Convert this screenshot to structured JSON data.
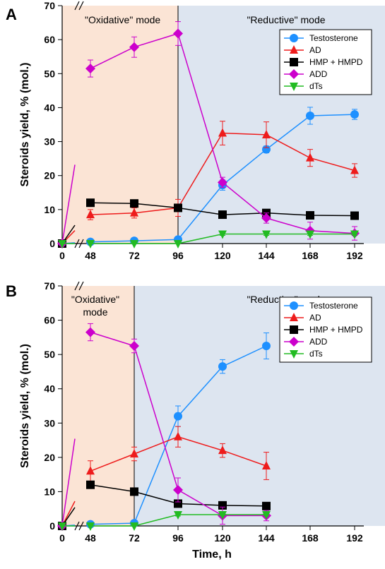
{
  "chart_data": [
    {
      "panel_label": "A",
      "type": "line",
      "ylabel": "Steroids yield, % (mol.)",
      "xlabel": "",
      "ylim": [
        0,
        70
      ],
      "yticks": [
        0,
        10,
        20,
        30,
        40,
        50,
        60,
        70
      ],
      "xticks": [
        0,
        48,
        72,
        96,
        120,
        144,
        168,
        192
      ],
      "axis_break": "between 0 and 48",
      "mode_labels": {
        "oxidative": "\"Oxidative\" mode",
        "reductive": "\"Reductive\" mode"
      },
      "mode_switch_at": 96,
      "legend_position": "top-right",
      "series": [
        {
          "name": "Testosterone",
          "color": "#1e90ff",
          "marker": "circle",
          "x": [
            0,
            48,
            72,
            96,
            120,
            144,
            168,
            192
          ],
          "y": [
            0,
            0.5,
            0.8,
            1.2,
            17.2,
            27.7,
            37.6,
            38
          ],
          "err": [
            0,
            0.5,
            0.5,
            0.5,
            1.5,
            1.0,
            2.5,
            1.5
          ]
        },
        {
          "name": "AD",
          "color": "#ee1c1c",
          "marker": "triangle",
          "x": [
            0,
            48,
            72,
            96,
            120,
            144,
            168,
            192
          ],
          "y": [
            0,
            8.5,
            9,
            10.5,
            32.5,
            32,
            25.2,
            21.5
          ],
          "err": [
            0,
            1.5,
            1.5,
            2.5,
            3.5,
            3.8,
            2.5,
            2.0
          ]
        },
        {
          "name": "HMP + HMPD",
          "color": "#000000",
          "marker": "square",
          "x": [
            0,
            48,
            72,
            96,
            120,
            144,
            168,
            192
          ],
          "y": [
            0,
            12,
            11.8,
            10.5,
            8.5,
            9,
            8.3,
            8.2
          ],
          "err": [
            0,
            0.8,
            0.8,
            0.8,
            0.5,
            0.5,
            0.5,
            0.5
          ]
        },
        {
          "name": "ADD",
          "color": "#cc00cc",
          "marker": "diamond",
          "x": [
            0,
            48,
            72,
            96,
            120,
            144,
            168,
            192
          ],
          "y": [
            0,
            51.5,
            57.8,
            61.8,
            18,
            7.5,
            3.8,
            3
          ],
          "err": [
            0,
            2.5,
            3.0,
            3.5,
            1.5,
            1.5,
            2.5,
            2.0
          ]
        },
        {
          "name": "dTs",
          "color": "#22bb22",
          "marker": "triangle-down",
          "x": [
            0,
            48,
            72,
            96,
            120,
            144,
            168,
            192
          ],
          "y": [
            0,
            0,
            0,
            0,
            2.8,
            2.8,
            2.8,
            2.8
          ],
          "err": [
            0,
            0,
            0,
            0,
            0.4,
            0.4,
            0.4,
            0.4
          ]
        }
      ]
    },
    {
      "panel_label": "B",
      "type": "line",
      "ylabel": "Steroids yield, % (mol.)",
      "xlabel": "Time, h",
      "ylim": [
        0,
        70
      ],
      "yticks": [
        0,
        10,
        20,
        30,
        40,
        50,
        60,
        70
      ],
      "xticks": [
        0,
        48,
        72,
        96,
        120,
        144,
        168,
        192
      ],
      "axis_break": "between 0 and 48",
      "mode_labels": {
        "oxidative": "\"Oxidative\"\nmode",
        "reductive": "\"Reductive\" mode"
      },
      "mode_switch_at": 72,
      "legend_position": "top-right",
      "series": [
        {
          "name": "Testosterone",
          "color": "#1e90ff",
          "marker": "circle",
          "x": [
            0,
            48,
            72,
            96,
            120,
            144
          ],
          "y": [
            0,
            0.5,
            0.8,
            32,
            46.5,
            52.5
          ],
          "err": [
            0,
            0.5,
            0.5,
            3.0,
            2.0,
            3.8
          ]
        },
        {
          "name": "AD",
          "color": "#ee1c1c",
          "marker": "triangle",
          "x": [
            0,
            48,
            72,
            96,
            120,
            144
          ],
          "y": [
            0,
            16,
            21,
            26,
            22,
            17.5
          ],
          "err": [
            0,
            3.0,
            2.0,
            3.0,
            2.0,
            4.0
          ]
        },
        {
          "name": "HMP + HMPD",
          "color": "#000000",
          "marker": "square",
          "x": [
            0,
            48,
            72,
            96,
            120,
            144
          ],
          "y": [
            0,
            12,
            10,
            6.5,
            6,
            5.8
          ],
          "err": [
            0,
            0.8,
            0.8,
            0.5,
            0.5,
            0.5
          ]
        },
        {
          "name": "ADD",
          "color": "#cc00cc",
          "marker": "diamond",
          "x": [
            0,
            48,
            72,
            96,
            120,
            144
          ],
          "y": [
            0,
            56.5,
            52.5,
            10.5,
            3,
            3
          ],
          "err": [
            0,
            2.5,
            2.0,
            3.5,
            2.5,
            1.5
          ]
        },
        {
          "name": "dTs",
          "color": "#22bb22",
          "marker": "triangle-down",
          "x": [
            0,
            48,
            72,
            96,
            120,
            144
          ],
          "y": [
            0,
            0,
            0,
            3.3,
            3.3,
            3.3
          ],
          "err": [
            0,
            0,
            0,
            0.4,
            0.4,
            0.4
          ]
        }
      ]
    }
  ],
  "colors": {
    "oxidative_bg": "#fbe4d5",
    "reductive_bg": "#dde5f0"
  }
}
